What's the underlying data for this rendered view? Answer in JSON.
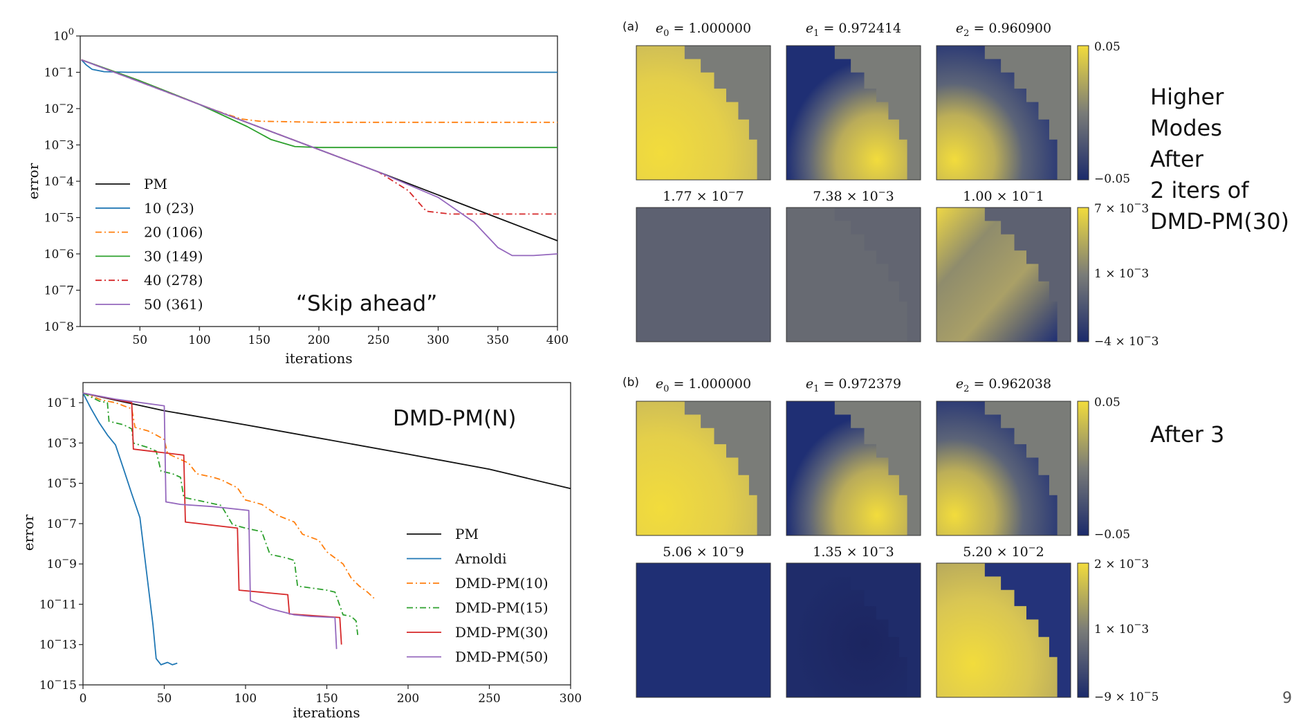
{
  "chart_data": [
    {
      "type": "line",
      "id": "top-left",
      "xlabel": "iterations",
      "ylabel": "error",
      "yscale": "log",
      "xlim": [
        0,
        400
      ],
      "ylim": [
        "1e-8",
        "1e0"
      ],
      "xticks": [
        "50",
        "100",
        "150",
        "200",
        "250",
        "300",
        "350",
        "400"
      ],
      "yticks": [
        "10^0",
        "10^-1",
        "10^-2",
        "10^-3",
        "10^-4",
        "10^-5",
        "10^-6",
        "10^-7",
        "10^-8"
      ],
      "legend_position": "lower-left",
      "annotation": "“Skip ahead”",
      "series": [
        {
          "name": "PM",
          "color": "#111111",
          "dash": "solid",
          "points": [
            [
              1,
              0.22
            ],
            [
              50,
              0.058
            ],
            [
              100,
              0.013
            ],
            [
              150,
              0.0031
            ],
            [
              200,
              0.00075
            ],
            [
              250,
              0.00018
            ],
            [
              300,
              4.2e-05
            ],
            [
              350,
              9.8e-06
            ],
            [
              400,
              2.3e-06
            ]
          ]
        },
        {
          "name": "10 (23)",
          "color": "#1f77b4",
          "dash": "solid",
          "points": [
            [
              1,
              0.22
            ],
            [
              5,
              0.16
            ],
            [
              10,
              0.12
            ],
            [
              20,
              0.104
            ],
            [
              40,
              0.1
            ],
            [
              100,
              0.1
            ],
            [
              200,
              0.1
            ],
            [
              300,
              0.1
            ],
            [
              400,
              0.1
            ]
          ]
        },
        {
          "name": "20 (106)",
          "color": "#ff7f0e",
          "dash": "dashdot",
          "points": [
            [
              1,
              0.22
            ],
            [
              50,
              0.058
            ],
            [
              100,
              0.013
            ],
            [
              120,
              0.0075
            ],
            [
              135,
              0.0052
            ],
            [
              150,
              0.0045
            ],
            [
              200,
              0.0042
            ],
            [
              300,
              0.0042
            ],
            [
              400,
              0.0042
            ]
          ]
        },
        {
          "name": "30 (149)",
          "color": "#2ca02c",
          "dash": "solid",
          "points": [
            [
              1,
              0.22
            ],
            [
              50,
              0.058
            ],
            [
              100,
              0.013
            ],
            [
              140,
              0.0032
            ],
            [
              160,
              0.0014
            ],
            [
              180,
              0.0009
            ],
            [
              200,
              0.00085
            ],
            [
              300,
              0.00085
            ],
            [
              400,
              0.00085
            ]
          ]
        },
        {
          "name": "40 (278)",
          "color": "#d62728",
          "dash": "dashdot",
          "points": [
            [
              1,
              0.22
            ],
            [
              100,
              0.013
            ],
            [
              200,
              0.00075
            ],
            [
              250,
              0.00018
            ],
            [
              275,
              5.5e-05
            ],
            [
              290,
              1.5e-05
            ],
            [
              310,
              1.25e-05
            ],
            [
              400,
              1.25e-05
            ]
          ]
        },
        {
          "name": "50 (361)",
          "color": "#9467bd",
          "dash": "solid",
          "points": [
            [
              1,
              0.22
            ],
            [
              100,
              0.013
            ],
            [
              200,
              0.00075
            ],
            [
              250,
              0.00018
            ],
            [
              300,
              3.6e-05
            ],
            [
              330,
              7.5e-06
            ],
            [
              350,
              1.5e-06
            ],
            [
              362,
              9e-07
            ],
            [
              380,
              9e-07
            ],
            [
              400,
              1e-06
            ]
          ]
        }
      ]
    },
    {
      "type": "line",
      "id": "bottom-left",
      "xlabel": "iterations",
      "ylabel": "error",
      "yscale": "log",
      "xlim": [
        0,
        300
      ],
      "ylim": [
        "1e-15",
        "1e0"
      ],
      "xticks": [
        "0",
        "50",
        "100",
        "150",
        "200",
        "250",
        "300"
      ],
      "yticks": [
        "10^-1",
        "10^-3",
        "10^-5",
        "10^-7",
        "10^-9",
        "10^-11",
        "10^-13",
        "10^-15"
      ],
      "legend_position": "lower-right",
      "annotation": "DMD-PM(N)",
      "series": [
        {
          "name": "PM",
          "color": "#111111",
          "dash": "solid",
          "points": [
            [
              0,
              0.3
            ],
            [
              50,
              0.04
            ],
            [
              100,
              0.008
            ],
            [
              150,
              0.0015
            ],
            [
              200,
              0.00028
            ],
            [
              250,
              5e-05
            ],
            [
              300,
              5.5e-06
            ]
          ]
        },
        {
          "name": "Arnoldi",
          "color": "#1f77b4",
          "dash": "solid",
          "points": [
            [
              0,
              0.3
            ],
            [
              5,
              0.05
            ],
            [
              10,
              0.01
            ],
            [
              15,
              0.0025
            ],
            [
              20,
              0.0008
            ],
            [
              25,
              5e-05
            ],
            [
              30,
              3e-06
            ],
            [
              35,
              2e-07
            ],
            [
              40,
              1e-10
            ],
            [
              43,
              1e-12
            ],
            [
              45,
              2e-14
            ],
            [
              48,
              1e-14
            ],
            [
              52,
              1.3e-14
            ],
            [
              55,
              1e-14
            ],
            [
              58,
              1.2e-14
            ]
          ]
        },
        {
          "name": "DMD-PM(10)",
          "color": "#ff7f0e",
          "dash": "dashdot",
          "points": [
            [
              0,
              0.3
            ],
            [
              10,
              0.15
            ],
            [
              15,
              0.12
            ],
            [
              20,
              0.1
            ],
            [
              25,
              0.07
            ],
            [
              30,
              0.05
            ],
            [
              32,
              0.006
            ],
            [
              40,
              0.004
            ],
            [
              45,
              0.0025
            ],
            [
              50,
              0.0015
            ],
            [
              52,
              0.0003
            ],
            [
              65,
              0.0001
            ],
            [
              70,
              3e-05
            ],
            [
              80,
              2e-05
            ],
            [
              85,
              1.5e-05
            ],
            [
              95,
              6e-06
            ],
            [
              100,
              1.5e-06
            ],
            [
              110,
              9e-07
            ],
            [
              120,
              2.5e-07
            ],
            [
              130,
              1.2e-07
            ],
            [
              135,
              3e-08
            ],
            [
              145,
              1.5e-08
            ],
            [
              150,
              4e-09
            ],
            [
              160,
              1e-09
            ],
            [
              165,
              2e-10
            ],
            [
              170,
              8e-11
            ],
            [
              175,
              4e-11
            ],
            [
              179,
              2e-11
            ]
          ]
        },
        {
          "name": "DMD-PM(15)",
          "color": "#2ca02c",
          "dash": "dashdot",
          "points": [
            [
              0,
              0.3
            ],
            [
              10,
              0.12
            ],
            [
              15,
              0.1
            ],
            [
              16,
              0.012
            ],
            [
              25,
              0.008
            ],
            [
              30,
              0.005
            ],
            [
              31,
              0.001
            ],
            [
              40,
              0.0006
            ],
            [
              45,
              0.0004
            ],
            [
              48,
              4e-05
            ],
            [
              55,
              3e-05
            ],
            [
              60,
              2e-05
            ],
            [
              62,
              2e-06
            ],
            [
              75,
              1.2e-06
            ],
            [
              85,
              8e-07
            ],
            [
              92,
              9e-08
            ],
            [
              100,
              6e-08
            ],
            [
              110,
              4e-08
            ],
            [
              115,
              3e-09
            ],
            [
              125,
              2e-09
            ],
            [
              130,
              1.5e-09
            ],
            [
              132,
              8e-11
            ],
            [
              150,
              5e-11
            ],
            [
              155,
              4e-11
            ],
            [
              160,
              3e-12
            ],
            [
              165,
              2.5e-12
            ],
            [
              168,
              1.5e-12
            ],
            [
              169,
              3e-13
            ]
          ]
        },
        {
          "name": "DMD-PM(30)",
          "color": "#d62728",
          "dash": "solid",
          "points": [
            [
              0,
              0.3
            ],
            [
              30,
              0.1
            ],
            [
              31,
              0.0005
            ],
            [
              62,
              0.00025
            ],
            [
              63,
              1.2e-07
            ],
            [
              95,
              6e-08
            ],
            [
              96,
              5e-11
            ],
            [
              126,
              3e-11
            ],
            [
              127,
              3.3e-12
            ],
            [
              158,
              2.2e-12
            ],
            [
              159,
              1e-13
            ]
          ]
        },
        {
          "name": "DMD-PM(50)",
          "color": "#9467bd",
          "dash": "solid",
          "points": [
            [
              0,
              0.3
            ],
            [
              20,
              0.15
            ],
            [
              50,
              0.07
            ],
            [
              51,
              1.2e-06
            ],
            [
              60,
              9e-07
            ],
            [
              80,
              7e-07
            ],
            [
              102,
              4.5e-07
            ],
            [
              103,
              1.5e-11
            ],
            [
              115,
              6e-12
            ],
            [
              130,
              3e-12
            ],
            [
              140,
              2.5e-12
            ],
            [
              155,
              2.2e-12
            ],
            [
              156,
              6e-14
            ]
          ]
        }
      ]
    },
    {
      "type": "heatmap",
      "id": "panel-a",
      "panel_label": "(a)",
      "eigen_titles": [
        "e_0 = 1.000000",
        "e_1 = 0.972414",
        "e_2 = 0.960900"
      ],
      "error_titles": [
        "1.77 × 10^-7",
        "7.38 × 10^-3",
        "1.00 × 10^-1"
      ],
      "top_colorbar": {
        "max": "0.05",
        "min": "−0.05"
      },
      "bottom_colorbar": {
        "max": "7 × 10^-3",
        "mid": "1 × 10^-3",
        "min": "−4 × 10^-3"
      }
    },
    {
      "type": "heatmap",
      "id": "panel-b",
      "panel_label": "(b)",
      "eigen_titles": [
        "e_0 = 1.000000",
        "e_1 = 0.972379",
        "e_2 = 0.962038"
      ],
      "error_titles": [
        "5.06 × 10^-9",
        "1.35 × 10^-3",
        "5.20 × 10^-2"
      ],
      "top_colorbar": {
        "max": "0.05",
        "min": "−0.05"
      },
      "bottom_colorbar": {
        "max": "2 × 10^-3",
        "mid": "1 × 10^-3",
        "min": "−9 × 10^-5"
      }
    }
  ],
  "notes": {
    "top_right": [
      "Higher",
      "Modes",
      "After",
      "2 iters of",
      "DMD-PM(30)"
    ],
    "bottom_right": "After 3"
  },
  "page_number": "9",
  "colors": {
    "cividis_low": "#1b2a6b",
    "cividis_mid": "#7a7c78",
    "cividis_high": "#f2dc3c"
  }
}
